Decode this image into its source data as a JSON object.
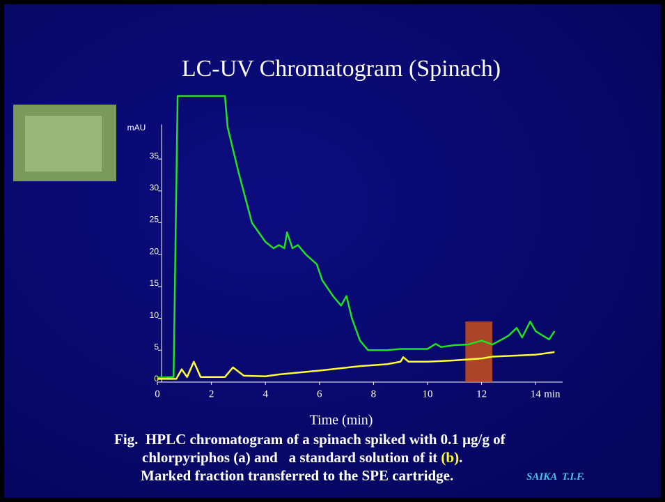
{
  "chart_data": {
    "type": "line",
    "title": "LC-UV Chromatogram (Spinach)",
    "y_unit": "mAU",
    "x_unit": "min",
    "x_label": "Time (min)",
    "xlim": [
      0,
      15
    ],
    "xticks": [
      0,
      2,
      4,
      6,
      8,
      10,
      12,
      14
    ],
    "ylim": [
      0,
      40
    ],
    "yticks": [
      0,
      5,
      10,
      15,
      20,
      25,
      30,
      35
    ],
    "marked_fraction": {
      "x": [
        11.4,
        12.4
      ],
      "y": [
        0,
        9.5
      ],
      "color": "#c8501e"
    },
    "series": [
      {
        "color": "#22e022",
        "x": [
          0,
          0.6,
          0.75,
          2.5,
          2.6,
          3,
          3.5,
          4,
          4.3,
          4.5,
          4.7,
          4.8,
          5,
          5.2,
          5.5,
          5.9,
          6.1,
          6.5,
          6.8,
          7,
          7.2,
          7.5,
          7.8,
          8.5,
          9,
          10,
          10.3,
          10.5,
          11,
          11.5,
          12,
          12.4,
          12.8,
          13,
          13.3,
          13.5,
          13.8,
          14,
          14.3,
          14.5,
          14.7
        ],
        "values": [
          0.7,
          0.8,
          44.9,
          44.9,
          40,
          33,
          25,
          22,
          21,
          21.5,
          21,
          23.5,
          21,
          21.5,
          20,
          18.5,
          16,
          13.5,
          12,
          13.5,
          10,
          6.5,
          5,
          5,
          5.2,
          5.2,
          6,
          5.5,
          5.8,
          5.9,
          6.5,
          5.9,
          6.8,
          7.3,
          8.5,
          7,
          9.5,
          8,
          7.2,
          6.7,
          8
        ]
      },
      {
        "color": "#ffff33",
        "x": [
          0,
          0.7,
          0.9,
          1.1,
          1.35,
          1.6,
          2.5,
          2.8,
          3.2,
          4,
          4.5,
          6,
          7.5,
          8.5,
          9,
          9.1,
          9.3,
          10,
          11,
          12,
          12.4,
          13,
          14,
          14.7
        ],
        "values": [
          0.5,
          0.5,
          2,
          0.8,
          3.2,
          0.8,
          0.8,
          2.3,
          1,
          0.9,
          1.2,
          1.8,
          2.5,
          2.8,
          3.2,
          3.9,
          3.2,
          3.2,
          3.4,
          3.7,
          4,
          4.1,
          4.3,
          4.7
        ]
      }
    ]
  },
  "caption": {
    "line1": "Fig.  HPLC chromatogram of a spinach spiked with 0.1 μg/g of",
    "line2_a": "chlorpyriphos (a) and   a standard solution of it ",
    "line2_b": "(b)",
    "line2_c": ".",
    "line3": "Marked fraction transferred to the SPE cartridge.",
    "credit": "SAIKA  T.I.F."
  }
}
